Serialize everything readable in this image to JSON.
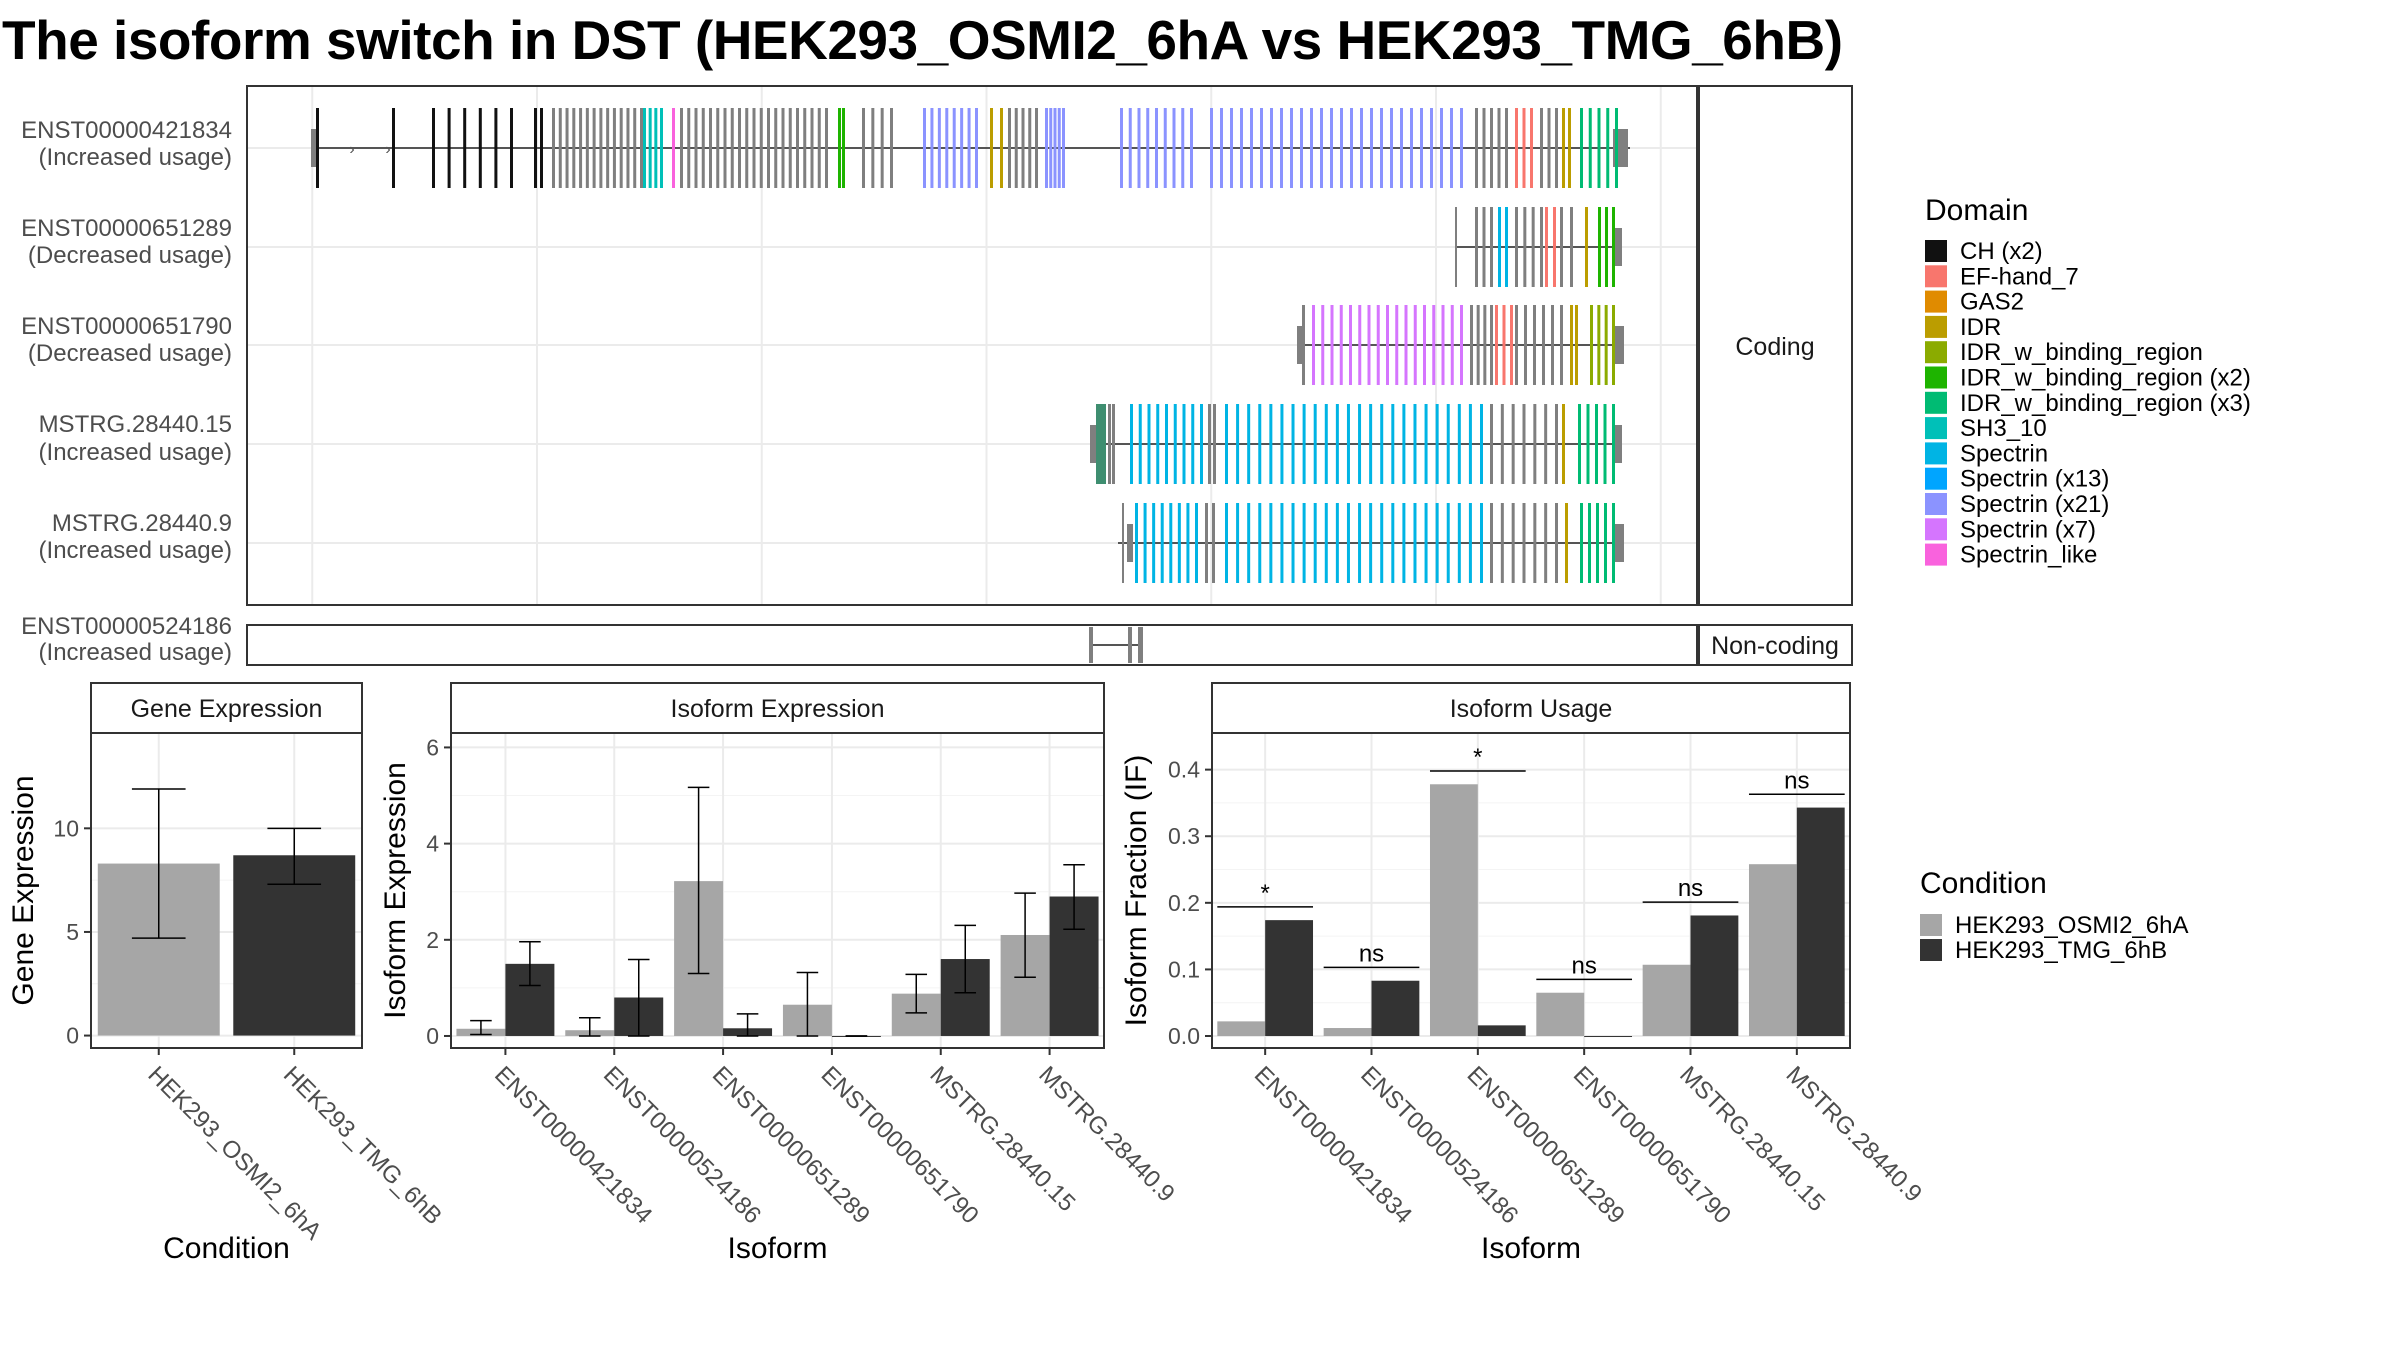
{
  "title": "The isoform switch in DST (HEK293_OSMI2_6hA vs HEK293_TMG_6hB)",
  "chart_data": [
    {
      "type": "transcript-structure",
      "panel": "isoform-structures",
      "groups": [
        {
          "label": "Coding",
          "tracks": [
            {
              "id": "ENST00000421834",
              "usage": "(Increased usage)"
            },
            {
              "id": "ENST00000651289",
              "usage": "(Decreased usage)"
            },
            {
              "id": "ENST00000651790",
              "usage": "(Decreased usage)"
            },
            {
              "id": "MSTRG.28440.15",
              "usage": "(Increased usage)"
            },
            {
              "id": "MSTRG.28440.9",
              "usage": "(Increased usage)"
            }
          ]
        },
        {
          "label": "Non-coding",
          "tracks": [
            {
              "id": "ENST00000524186",
              "usage": "(Increased usage)"
            }
          ]
        }
      ],
      "legend": {
        "title": "Domain",
        "entries": [
          {
            "name": "CH (x2)",
            "color": "#111111"
          },
          {
            "name": "EF-hand_7",
            "color": "#F8766D"
          },
          {
            "name": "GAS2",
            "color": "#E08B00"
          },
          {
            "name": "IDR",
            "color": "#BB9D00"
          },
          {
            "name": "IDR_w_binding_region",
            "color": "#8BAB00"
          },
          {
            "name": "IDR_w_binding_region (x2)",
            "color": "#1EB400"
          },
          {
            "name": "IDR_w_binding_region (x3)",
            "color": "#00BB73"
          },
          {
            "name": "SH3_10",
            "color": "#00C0B8"
          },
          {
            "name": "Spectrin",
            "color": "#00B4E4"
          },
          {
            "name": "Spectrin (x13)",
            "color": "#00A5FF"
          },
          {
            "name": "Spectrin (x21)",
            "color": "#8B93FF"
          },
          {
            "name": "Spectrin (x7)",
            "color": "#D575FE"
          },
          {
            "name": "Spectrin_like",
            "color": "#F962DD"
          }
        ]
      }
    },
    {
      "type": "bar",
      "panel": "gene-expression",
      "title": "Gene Expression",
      "xlabel": "Condition",
      "ylabel": "Gene Expression",
      "categories": [
        "HEK293_OSMI2_6hA",
        "HEK293_TMG_6hB"
      ],
      "values": [
        8.3,
        8.7
      ],
      "error_low": [
        4.7,
        7.3
      ],
      "error_high": [
        11.9,
        10.0
      ],
      "ylim": [
        -0.6,
        14.6
      ],
      "yticks": [
        0,
        5,
        10
      ]
    },
    {
      "type": "bar",
      "panel": "isoform-expression",
      "title": "Isoform Expression",
      "xlabel": "Isoform",
      "ylabel": "Isoform Expression",
      "categories": [
        "ENST00000421834",
        "ENST00000524186",
        "ENST00000651289",
        "ENST00000651790",
        "MSTRG.28440.15",
        "MSTRG.28440.9"
      ],
      "series": [
        {
          "name": "HEK293_OSMI2_6hA",
          "values": [
            0.15,
            0.12,
            3.22,
            0.65,
            0.88,
            2.1
          ],
          "error_low": [
            0.03,
            0.0,
            1.3,
            0.0,
            0.48,
            1.22
          ],
          "error_high": [
            0.32,
            0.38,
            5.17,
            1.32,
            1.28,
            2.97
          ]
        },
        {
          "name": "HEK293_TMG_6hB",
          "values": [
            1.5,
            0.8,
            0.16,
            0.0,
            1.6,
            2.9
          ],
          "error_low": [
            1.05,
            0.0,
            0.0,
            0.0,
            0.9,
            2.22
          ],
          "error_high": [
            1.96,
            1.59,
            0.46,
            0.0,
            2.3,
            3.56
          ]
        }
      ],
      "ylim": [
        -0.25,
        6.3
      ],
      "yticks": [
        0,
        2,
        4,
        6
      ]
    },
    {
      "type": "bar",
      "panel": "isoform-usage",
      "title": "Isoform Usage",
      "xlabel": "Isoform",
      "ylabel": "Isoform Fraction (IF)",
      "categories": [
        "ENST00000421834",
        "ENST00000524186",
        "ENST00000651289",
        "ENST00000651790",
        "MSTRG.28440.15",
        "MSTRG.28440.9"
      ],
      "series": [
        {
          "name": "HEK293_OSMI2_6hA",
          "values": [
            0.022,
            0.012,
            0.378,
            0.065,
            0.107,
            0.258
          ]
        },
        {
          "name": "HEK293_TMG_6hB",
          "values": [
            0.174,
            0.083,
            0.016,
            0.0,
            0.181,
            0.343
          ]
        }
      ],
      "significance": [
        "*",
        "ns",
        "*",
        "ns",
        "ns",
        "ns"
      ],
      "ylim": [
        -0.018,
        0.455
      ],
      "yticks": [
        0.0,
        0.1,
        0.2,
        0.3,
        0.4
      ],
      "ytick_labels": [
        "0.0",
        "0.1",
        "0.2",
        "0.3",
        "0.4"
      ]
    }
  ],
  "condition_legend": {
    "title": "Condition",
    "entries": [
      {
        "name": "HEK293_OSMI2_6hA",
        "color": "#A6A6A6"
      },
      {
        "name": "HEK293_TMG_6hB",
        "color": "#333333"
      }
    ]
  }
}
